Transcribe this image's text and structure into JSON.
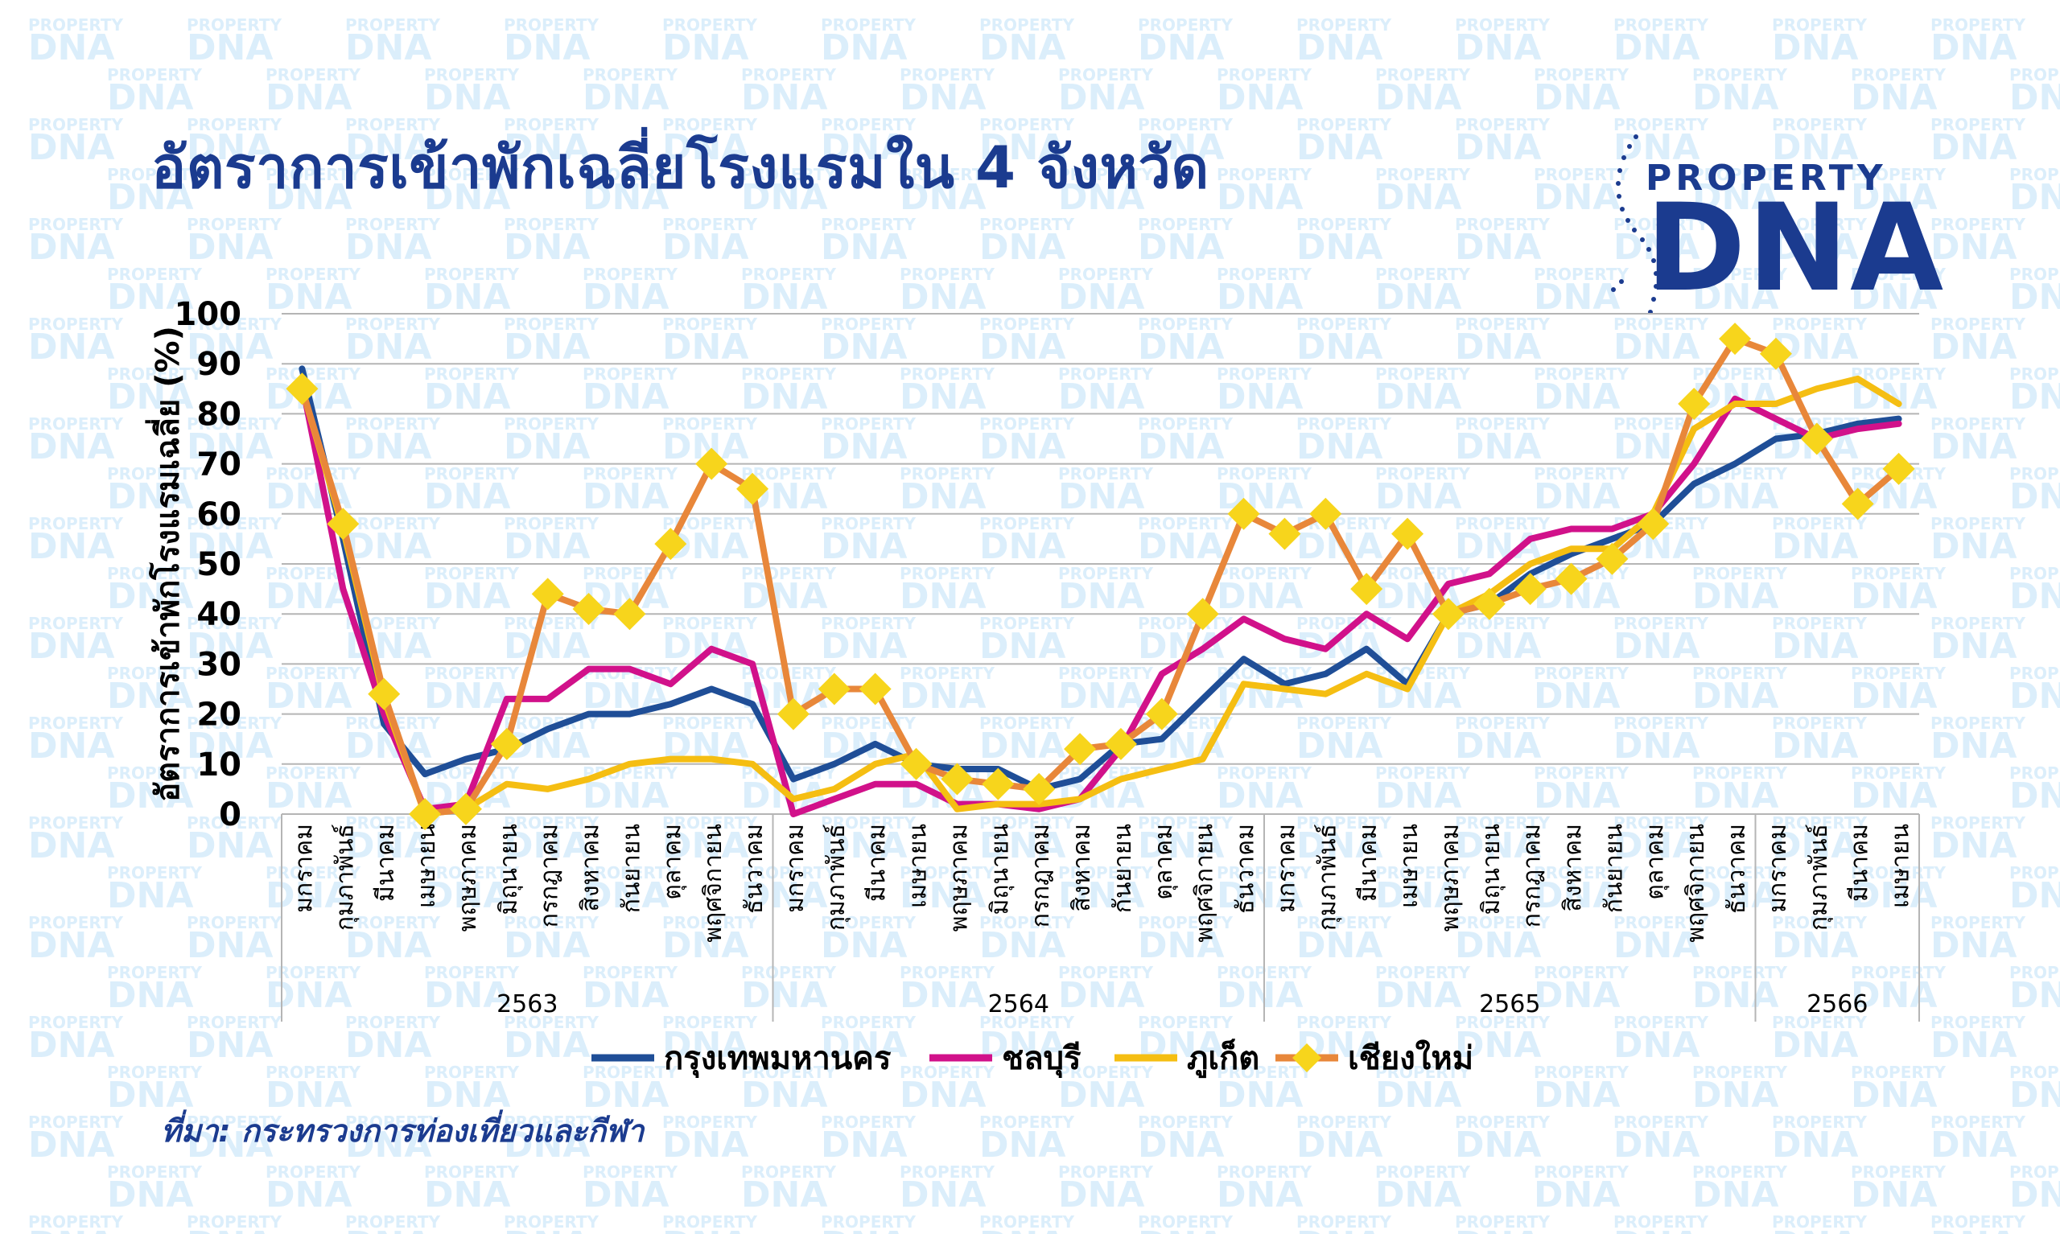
{
  "title": "อัตราการเข้าพักเฉลี่ยโรงแรมใน 4 จังหวัด",
  "logo": {
    "top": "PROPERTY",
    "main": "DNA"
  },
  "watermark": {
    "line1": "PROPERTY",
    "line2": "DNA"
  },
  "source": "ที่มา: กระทรวงการท่องเที่ยวและกีฬา",
  "colors": {
    "title": "#1b3b8f",
    "bangkok": "#1f4e97",
    "chonburi": "#d1118a",
    "phuket": "#f5be12",
    "chiangmai": "#e8873a",
    "chiangmai_marker": "#f7d51c",
    "grid": "#b5b5b5",
    "watermark": "#dbeefb"
  },
  "chart_data": {
    "type": "line",
    "ylabel": "อัตราการเข้าพักโรงแรมเฉลี่ย (%)",
    "ylim": [
      0,
      100
    ],
    "yticks": [
      0,
      10,
      20,
      30,
      40,
      50,
      60,
      70,
      80,
      90,
      100
    ],
    "legend_position": "bottom",
    "categories": [
      "มกราคม",
      "กุมภาพันธ์",
      "มีนาคม",
      "เมษายน",
      "พฤษภาคม",
      "มิถุนายน",
      "กรกฎาคม",
      "สิงหาคม",
      "กันยายน",
      "ตุลาคม",
      "พฤศจิกายน",
      "ธันวาคม",
      "มกราคม",
      "กุมภาพันธ์",
      "มีนาคม",
      "เมษายน",
      "พฤษภาคม",
      "มิถุนายน",
      "กรกฎาคม",
      "สิงหาคม",
      "กันยายน",
      "ตุลาคม",
      "พฤศจิกายน",
      "ธันวาคม",
      "มกราคม",
      "กุมภาพันธ์",
      "มีนาคม",
      "เมษายน",
      "พฤษภาคม",
      "มิถุนายน",
      "กรกฎาคม",
      "สิงหาคม",
      "กันยายน",
      "ตุลาคม",
      "พฤศจิกายน",
      "ธันวาคม",
      "มกราคม",
      "กุมภาพันธ์",
      "มีนาคม",
      "เมษายน"
    ],
    "year_groups": [
      {
        "label": "2563",
        "count": 12
      },
      {
        "label": "2564",
        "count": 12
      },
      {
        "label": "2565",
        "count": 12
      },
      {
        "label": "2566",
        "count": 4
      }
    ],
    "series": [
      {
        "name": "กรุงเทพมหานคร",
        "color_key": "bangkok",
        "marker": "none",
        "values": [
          89,
          55,
          18,
          8,
          11,
          13,
          17,
          20,
          20,
          22,
          25,
          22,
          7,
          10,
          14,
          10,
          9,
          9,
          5,
          7,
          14,
          15,
          23,
          31,
          26,
          28,
          33,
          26,
          40,
          42,
          48,
          52,
          55,
          58,
          66,
          70,
          75,
          76,
          78,
          79
        ]
      },
      {
        "name": "ชลบุรี",
        "color_key": "chonburi",
        "marker": "none",
        "values": [
          86,
          45,
          20,
          1,
          2,
          23,
          23,
          29,
          29,
          26,
          33,
          30,
          0,
          3,
          6,
          6,
          2,
          2,
          1,
          3,
          13,
          28,
          33,
          39,
          35,
          33,
          40,
          35,
          46,
          48,
          55,
          57,
          57,
          60,
          70,
          83,
          79,
          75,
          77,
          78
        ]
      },
      {
        "name": "ภูเก็ต",
        "color_key": "phuket",
        "marker": "none",
        "values": [
          85,
          57,
          23,
          0,
          1,
          6,
          5,
          7,
          10,
          11,
          11,
          10,
          3,
          5,
          10,
          12,
          1,
          2,
          2,
          3,
          7,
          9,
          11,
          26,
          25,
          24,
          28,
          25,
          40,
          44,
          50,
          53,
          53,
          60,
          77,
          82,
          82,
          85,
          87,
          82
        ]
      },
      {
        "name": "เชียงใหม่",
        "color_key": "chiangmai",
        "marker": "diamond",
        "values": [
          85,
          58,
          24,
          0,
          1,
          14,
          44,
          41,
          40,
          54,
          70,
          65,
          20,
          25,
          25,
          10,
          7,
          6,
          5,
          13,
          14,
          20,
          40,
          60,
          56,
          60,
          45,
          56,
          40,
          42,
          45,
          47,
          51,
          58,
          82,
          95,
          92,
          75,
          62,
          69
        ]
      }
    ]
  }
}
